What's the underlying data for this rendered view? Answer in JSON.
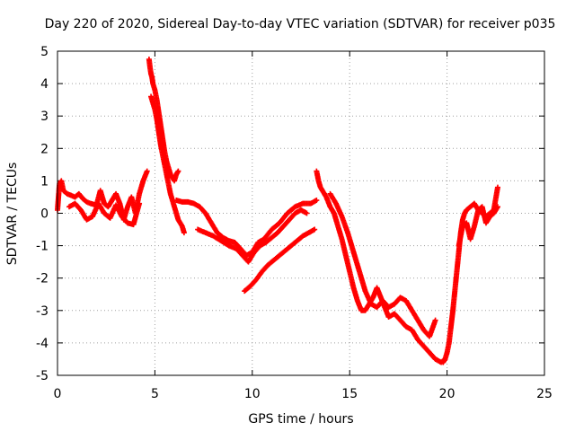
{
  "chart_data": {
    "type": "scatter",
    "title": "Day 220 of 2020, Sidereal Day-to-day VTEC variation (SDTVAR) for receiver p035",
    "xlabel": "GPS time / hours",
    "ylabel": "SDTVAR / TECUs",
    "xlim": [
      0,
      25
    ],
    "ylim": [
      -5,
      5
    ],
    "xticks": [
      0,
      5,
      10,
      15,
      20,
      25
    ],
    "yticks": [
      -5,
      -4,
      -3,
      -2,
      -1,
      0,
      1,
      2,
      3,
      4,
      5
    ],
    "grid": true,
    "marker": "+",
    "marker_color": "#ff0000",
    "series": [
      {
        "name": "SDTVAR",
        "segments": [
          {
            "x": [
              0.0,
              0.1,
              0.2,
              0.3,
              0.5,
              0.7,
              0.9,
              1.1,
              1.3,
              1.5,
              1.7,
              2.0,
              2.2,
              2.4,
              2.6,
              2.8,
              3.0,
              3.2,
              3.4,
              3.6,
              3.8,
              4.0,
              4.2,
              4.4,
              4.6
            ],
            "y": [
              0.1,
              0.9,
              1.0,
              0.7,
              0.6,
              0.55,
              0.5,
              0.6,
              0.45,
              0.35,
              0.3,
              0.25,
              0.7,
              0.3,
              0.2,
              0.4,
              0.6,
              0.3,
              -0.2,
              0.2,
              0.5,
              0.0,
              0.6,
              1.0,
              1.3
            ]
          },
          {
            "x": [
              0.6,
              0.9,
              1.2,
              1.5,
              1.8,
              2.1,
              2.4,
              2.7,
              3.0,
              3.3,
              3.6,
              3.9,
              4.2
            ],
            "y": [
              0.2,
              0.3,
              0.1,
              -0.2,
              -0.1,
              0.3,
              0.0,
              -0.15,
              0.25,
              -0.1,
              -0.3,
              -0.35,
              0.3
            ]
          },
          {
            "x": [
              4.7,
              4.75,
              4.8,
              4.85,
              4.9,
              5.0,
              5.1,
              5.2,
              5.3,
              5.4,
              5.5,
              5.6,
              5.7,
              5.8,
              5.9,
              6.0,
              6.1,
              6.2
            ],
            "y": [
              4.75,
              4.5,
              4.3,
              4.2,
              4.0,
              3.8,
              3.5,
              3.1,
              2.7,
              2.3,
              1.9,
              1.6,
              1.4,
              1.2,
              1.1,
              1.0,
              1.2,
              1.3
            ]
          },
          {
            "x": [
              4.8,
              4.9,
              5.0,
              5.1,
              5.2,
              5.3,
              5.4,
              5.5,
              5.6,
              5.7,
              5.8,
              5.9,
              6.0,
              6.1,
              6.2,
              6.3,
              6.4,
              6.5
            ],
            "y": [
              3.6,
              3.4,
              3.2,
              2.9,
              2.5,
              2.1,
              1.8,
              1.5,
              1.2,
              0.9,
              0.6,
              0.4,
              0.2,
              0.0,
              -0.2,
              -0.3,
              -0.4,
              -0.6
            ]
          },
          {
            "x": [
              6.1,
              6.4,
              6.7,
              7.0,
              7.3,
              7.6,
              7.9,
              8.2,
              8.5,
              8.8,
              9.1,
              9.4,
              9.7,
              10.0,
              10.3,
              10.6,
              11.0,
              11.4,
              11.8,
              12.2,
              12.6,
              13.0,
              13.3
            ],
            "y": [
              0.4,
              0.35,
              0.35,
              0.3,
              0.2,
              0.0,
              -0.3,
              -0.6,
              -0.75,
              -0.85,
              -0.9,
              -1.1,
              -1.3,
              -1.2,
              -0.9,
              -0.8,
              -0.5,
              -0.3,
              0.0,
              0.2,
              0.3,
              0.3,
              0.4
            ]
          },
          {
            "x": [
              7.2,
              7.6,
              8.0,
              8.4,
              8.8,
              9.2,
              9.5,
              9.8,
              10.1,
              10.4,
              10.7,
              11.0,
              11.3,
              11.6,
              11.9,
              12.2,
              12.5,
              12.8
            ],
            "y": [
              -0.5,
              -0.6,
              -0.7,
              -0.85,
              -1.0,
              -1.1,
              -1.3,
              -1.5,
              -1.2,
              -1.0,
              -0.9,
              -0.75,
              -0.6,
              -0.4,
              -0.2,
              0.0,
              0.1,
              0.0
            ]
          },
          {
            "x": [
              9.6,
              9.9,
              10.2,
              10.5,
              10.8,
              11.1,
              11.4,
              11.7,
              12.0,
              12.3,
              12.6,
              12.9,
              13.2
            ],
            "y": [
              -2.4,
              -2.25,
              -2.05,
              -1.8,
              -1.6,
              -1.45,
              -1.3,
              -1.15,
              -1.0,
              -0.85,
              -0.7,
              -0.6,
              -0.5
            ]
          },
          {
            "x": [
              13.3,
              13.4,
              13.5,
              13.6,
              13.8,
              14.0,
              14.2,
              14.4,
              14.6,
              14.8,
              15.0,
              15.2,
              15.4,
              15.6,
              15.8,
              16.0,
              16.2,
              16.4,
              16.6,
              16.8,
              17.0,
              17.3,
              17.6,
              17.9,
              18.2,
              18.5,
              18.8,
              19.1,
              19.4,
              19.7,
              19.9
            ],
            "y": [
              1.3,
              1.0,
              0.8,
              0.7,
              0.5,
              0.2,
              0.0,
              -0.4,
              -0.8,
              -1.3,
              -1.8,
              -2.3,
              -2.7,
              -3.0,
              -3.0,
              -2.8,
              -2.6,
              -2.3,
              -2.6,
              -2.9,
              -3.2,
              -3.1,
              -3.3,
              -3.5,
              -3.6,
              -3.9,
              -4.1,
              -4.3,
              -4.5,
              -4.6,
              -4.5
            ]
          },
          {
            "x": [
              14.0,
              14.3,
              14.6,
              14.9,
              15.2,
              15.5,
              15.8,
              16.1,
              16.4,
              16.7,
              17.0,
              17.3,
              17.6,
              17.9,
              18.2,
              18.5,
              18.8,
              19.1,
              19.4
            ],
            "y": [
              0.6,
              0.3,
              -0.1,
              -0.6,
              -1.2,
              -1.8,
              -2.4,
              -2.8,
              -2.9,
              -2.7,
              -2.9,
              -2.8,
              -2.6,
              -2.7,
              -3.0,
              -3.3,
              -3.6,
              -3.8,
              -3.3
            ]
          },
          {
            "x": [
              19.8,
              19.9,
              20.0,
              20.1,
              20.2,
              20.3,
              20.4,
              20.5,
              20.6,
              20.7,
              20.8,
              20.9,
              21.0,
              21.2,
              21.4,
              21.6,
              21.8,
              22.0,
              22.2,
              22.4,
              22.6
            ],
            "y": [
              -4.6,
              -4.5,
              -4.3,
              -4.0,
              -3.5,
              -3.0,
              -2.4,
              -1.8,
              -1.2,
              -0.6,
              -0.2,
              0.0,
              0.1,
              0.2,
              0.3,
              0.1,
              0.0,
              -0.1,
              0.0,
              0.1,
              0.8
            ]
          },
          {
            "x": [
              20.6,
              20.8,
              21.0,
              21.2,
              21.4,
              21.6,
              21.8,
              22.0,
              22.2,
              22.4,
              22.6
            ],
            "y": [
              -1.0,
              -0.4,
              -0.3,
              -0.8,
              -0.4,
              0.1,
              0.2,
              -0.3,
              -0.1,
              0.0,
              0.2
            ]
          }
        ]
      }
    ]
  }
}
